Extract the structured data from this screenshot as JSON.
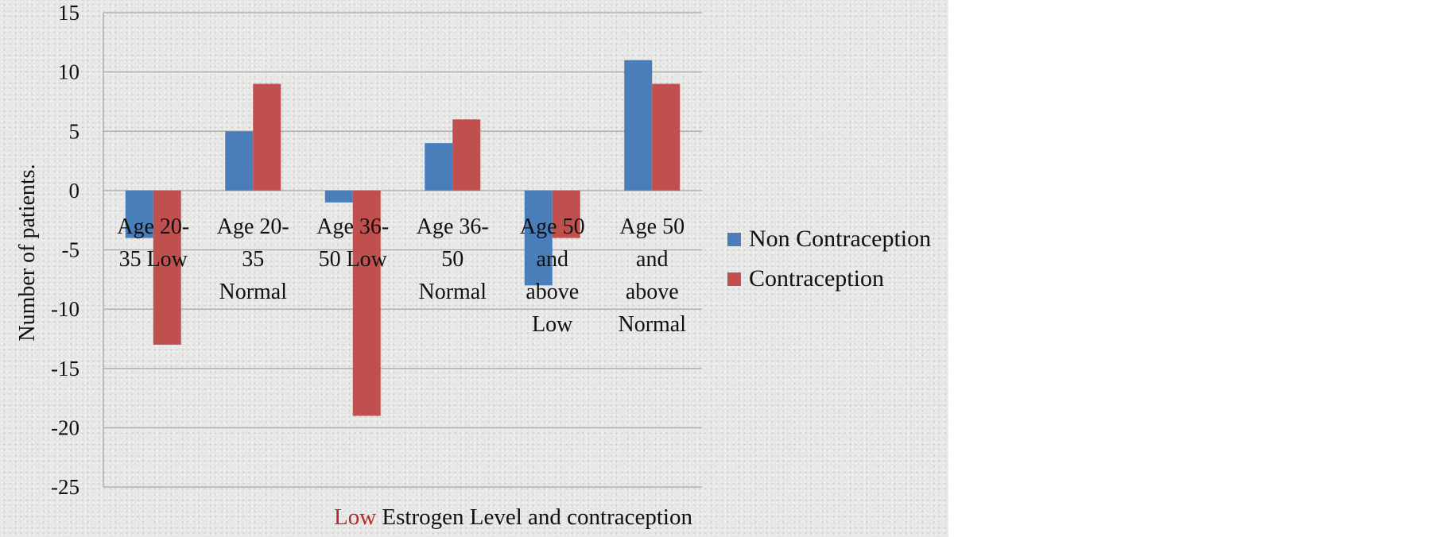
{
  "chart_data": {
    "type": "bar",
    "xlabel_highlight": "Low",
    "xlabel_rest": " Estrogen Level and contraception",
    "ylabel": "Number of patients.",
    "ylim": [
      -25,
      15
    ],
    "y_ticks": [
      15,
      10,
      5,
      0,
      -5,
      -10,
      -15,
      -20,
      -25
    ],
    "grid": true,
    "legend_position": "right",
    "categories": [
      [
        "Age 20-",
        "35 Low"
      ],
      [
        "Age 20-",
        "35",
        "Normal"
      ],
      [
        "Age 36-",
        "50 Low"
      ],
      [
        "Age 36-",
        "50",
        "Normal"
      ],
      [
        "Age 50",
        "and",
        "above",
        "Low"
      ],
      [
        "Age 50",
        "and",
        "above",
        "Normal"
      ]
    ],
    "series": [
      {
        "name": "Non Contraception",
        "color": "#4a7ebb",
        "values": [
          -4,
          5,
          -1,
          4,
          -8,
          11
        ]
      },
      {
        "name": "Contraception",
        "color": "#c0504d",
        "values": [
          -13,
          9,
          -19,
          6,
          -4,
          9
        ]
      }
    ],
    "gridline_color": "#b0b0b0"
  }
}
